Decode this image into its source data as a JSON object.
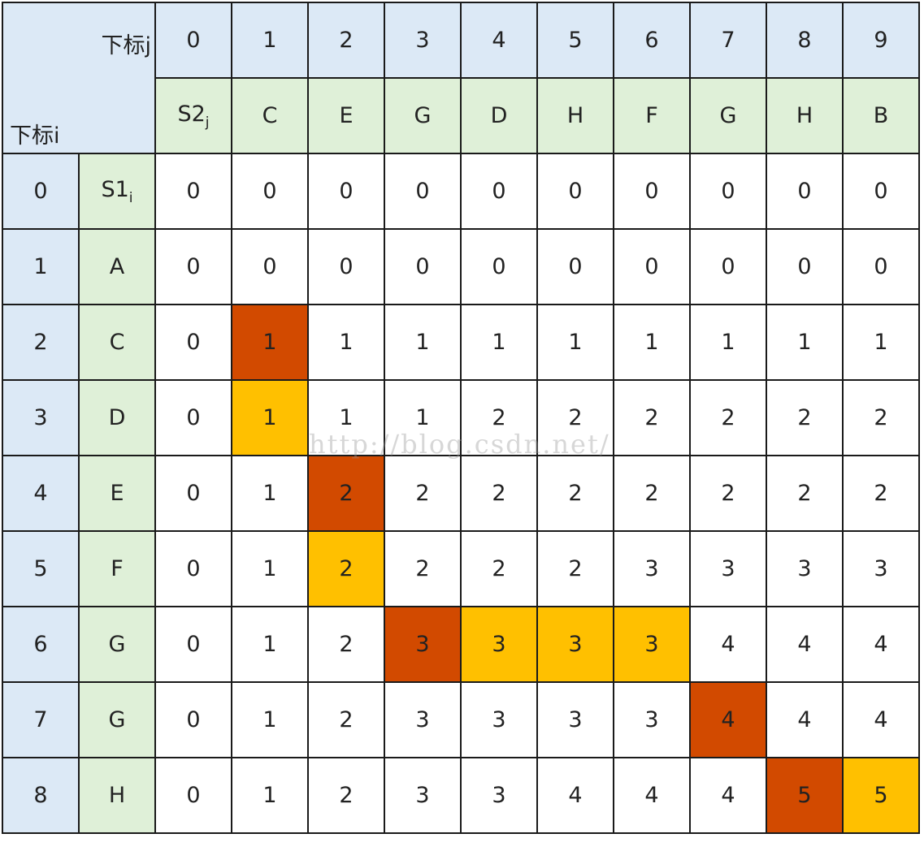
{
  "corner": {
    "col_axis_label": "下标j",
    "row_axis_label": "下标i"
  },
  "col_indices": [
    "0",
    "1",
    "2",
    "3",
    "4",
    "5",
    "6",
    "7",
    "8",
    "9"
  ],
  "s2_label": {
    "base": "S2",
    "sub": "j"
  },
  "s2_chars": [
    "C",
    "E",
    "G",
    "D",
    "H",
    "F",
    "G",
    "H",
    "B"
  ],
  "s1_label": {
    "base": "S1",
    "sub": "i"
  },
  "rows": [
    {
      "index": "0",
      "char": "",
      "values": [
        "0",
        "0",
        "0",
        "0",
        "0",
        "0",
        "0",
        "0",
        "0",
        "0"
      ]
    },
    {
      "index": "1",
      "char": "A",
      "values": [
        "0",
        "0",
        "0",
        "0",
        "0",
        "0",
        "0",
        "0",
        "0",
        "0"
      ]
    },
    {
      "index": "2",
      "char": "C",
      "values": [
        "0",
        "1",
        "1",
        "1",
        "1",
        "1",
        "1",
        "1",
        "1",
        "1"
      ]
    },
    {
      "index": "3",
      "char": "D",
      "values": [
        "0",
        "1",
        "1",
        "1",
        "2",
        "2",
        "2",
        "2",
        "2",
        "2"
      ]
    },
    {
      "index": "4",
      "char": "E",
      "values": [
        "0",
        "1",
        "2",
        "2",
        "2",
        "2",
        "2",
        "2",
        "2",
        "2"
      ]
    },
    {
      "index": "5",
      "char": "F",
      "values": [
        "0",
        "1",
        "2",
        "2",
        "2",
        "2",
        "3",
        "3",
        "3",
        "3"
      ]
    },
    {
      "index": "6",
      "char": "G",
      "values": [
        "0",
        "1",
        "2",
        "3",
        "3",
        "3",
        "3",
        "4",
        "4",
        "4"
      ]
    },
    {
      "index": "7",
      "char": "G",
      "values": [
        "0",
        "1",
        "2",
        "3",
        "3",
        "3",
        "3",
        "4",
        "4",
        "4"
      ]
    },
    {
      "index": "8",
      "char": "H",
      "values": [
        "0",
        "1",
        "2",
        "3",
        "3",
        "4",
        "4",
        "4",
        "5",
        "5"
      ]
    }
  ],
  "highlights": {
    "dark": [
      [
        2,
        1
      ],
      [
        4,
        2
      ],
      [
        6,
        3
      ],
      [
        7,
        7
      ],
      [
        8,
        8
      ]
    ],
    "light": [
      [
        3,
        1
      ],
      [
        5,
        2
      ],
      [
        6,
        4
      ],
      [
        6,
        5
      ],
      [
        6,
        6
      ],
      [
        8,
        9
      ]
    ]
  },
  "colors": {
    "index_header": "#dce9f6",
    "sequence_header": "#dff0d8",
    "match_cell": "#d24a00",
    "path_cell": "#ffc000",
    "border": "#1a1a1a"
  },
  "watermark": "http://blog.csdn.net/"
}
